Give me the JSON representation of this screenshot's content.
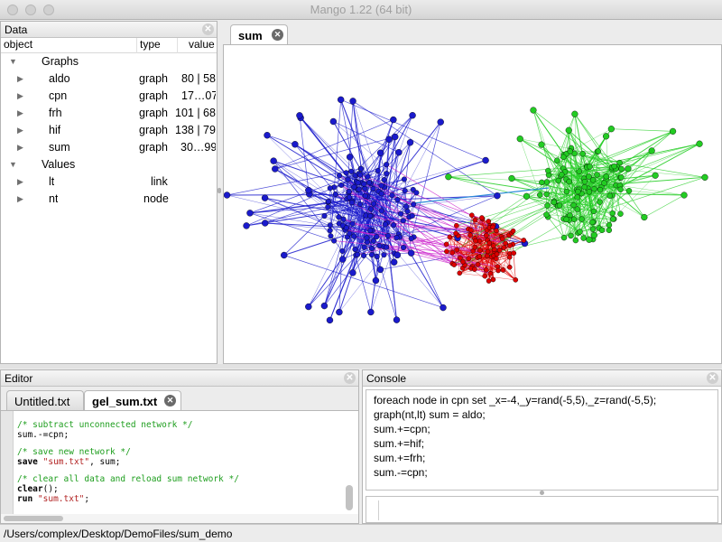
{
  "window": {
    "title": "Mango 1.22 (64 bit)"
  },
  "data_panel": {
    "title": "Data",
    "columns": {
      "object": "object",
      "type": "type",
      "value": "value"
    },
    "groups": [
      {
        "label": "Graphs",
        "items": [
          {
            "object": "aldo",
            "type": "graph",
            "value": "80 | 58"
          },
          {
            "object": "cpn",
            "type": "graph",
            "value": "17…07"
          },
          {
            "object": "frh",
            "type": "graph",
            "value": "101 | 68"
          },
          {
            "object": "hif",
            "type": "graph",
            "value": "138 | 79"
          },
          {
            "object": "sum",
            "type": "graph",
            "value": "30…99"
          }
        ]
      },
      {
        "label": "Values",
        "items": [
          {
            "object": "lt",
            "type": "link",
            "value": ""
          },
          {
            "object": "nt",
            "type": "node",
            "value": ""
          }
        ]
      }
    ]
  },
  "graph_view": {
    "tab_label": "sum"
  },
  "editor": {
    "title": "Editor",
    "tabs": [
      {
        "label": "Untitled.txt"
      },
      {
        "label": "gel_sum.txt"
      }
    ],
    "code": {
      "l1": "/* subtract unconnected network */",
      "l2": "sum.-=cpn;",
      "l3": "/* save new network */",
      "l4_kw": "save",
      "l4_str": "\"sum.txt\"",
      "l4_rest": ", sum;",
      "l5": "/* clear all data and reload sum network */",
      "l6_kw": "clear",
      "l6_rest": "();",
      "l7_kw": "run",
      "l7_str": "\"sum.txt\"",
      "l7_rest": ";"
    }
  },
  "console": {
    "title": "Console",
    "lines": [
      "foreach node in cpn set _x=-4,_y=rand(-5,5),_z=rand(-5,5);",
      "graph(nt,lt) sum = aldo;",
      "sum.+=cpn;",
      "sum.+=hif;",
      "sum.+=frh;",
      "sum.-=cpn;"
    ]
  },
  "status": {
    "path": "/Users/complex/Desktop/DemoFiles/sum_demo"
  },
  "colors": {
    "blue_cluster": "#1a1acc",
    "red_cluster": "#dd0000",
    "green_cluster": "#22cc22",
    "magenta_links": "#cc22cc",
    "cyan_link": "#2a8ad8"
  }
}
